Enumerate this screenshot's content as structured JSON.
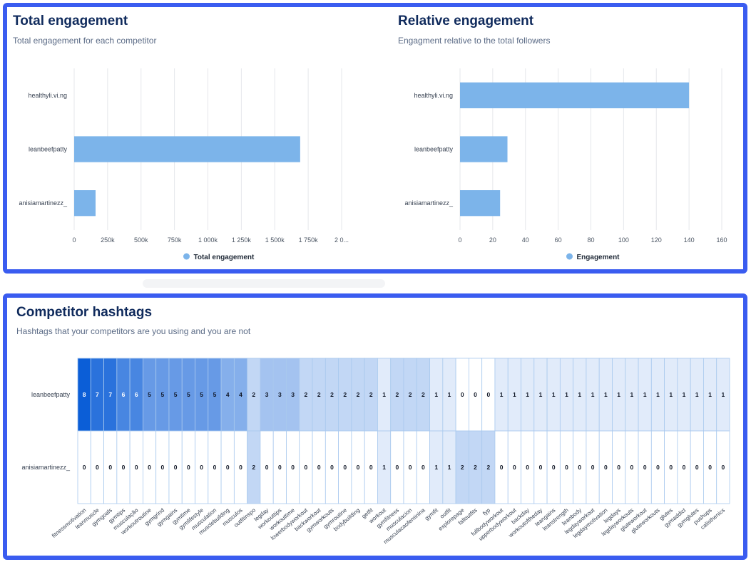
{
  "total_panel": {
    "title": "Total engagement",
    "subtitle": "Total engagement for each competitor"
  },
  "relative_panel": {
    "title": "Relative engagement",
    "subtitle": "Engagment relative to the total followers"
  },
  "hashtag_panel": {
    "title": "Competitor hashtags",
    "subtitle": "Hashtags that your competitors are you using and you are not"
  },
  "colors": {
    "bar": "#7cb4ea",
    "legend_dot": "#7cb4ea",
    "grid": "#e5e7eb",
    "heat_max": "#0b5ed7",
    "heat_min": "#ffffff"
  },
  "chart_data": [
    {
      "type": "bar",
      "orientation": "horizontal",
      "categories": [
        "healthyli.vi.ng",
        "leanbeefpatty",
        "anisiamartinezz_"
      ],
      "series": [
        {
          "name": "Total engagement",
          "values": [
            0,
            1690000,
            160000
          ]
        }
      ],
      "xlim": [
        0,
        2000000
      ],
      "x_ticks": [
        "0",
        "250k",
        "500k",
        "750k",
        "1 000k",
        "1 250k",
        "1 500k",
        "1 750k",
        "2 0..."
      ],
      "legend": "bottom-center",
      "grid": true
    },
    {
      "type": "bar",
      "orientation": "horizontal",
      "categories": [
        "healthyli.vi.ng",
        "leanbeefpatty",
        "anisiamartinezz_"
      ],
      "series": [
        {
          "name": "Engagement",
          "values": [
            140,
            29,
            24.5
          ]
        }
      ],
      "xlim": [
        0,
        160
      ],
      "x_ticks": [
        "0",
        "20",
        "40",
        "60",
        "80",
        "100",
        "120",
        "140",
        "160"
      ],
      "legend": "bottom-center",
      "grid": true
    },
    {
      "type": "heatmap",
      "rows": [
        "leanbeefpatty",
        "anisiamartinezz_"
      ],
      "columns": [
        "fitnessmotivation",
        "leanmuscle",
        "gymgoals",
        "gymtips",
        "musculação",
        "workoutroutine",
        "gymgrind",
        "gymgains",
        "gymtime",
        "gymlifestyle",
        "musculation",
        "musclebuilding",
        "musculos",
        "outfitinspo",
        "legday",
        "workouttips",
        "workouttime",
        "lowerbodyworkout",
        "backworkout",
        "gymworkouts",
        "gymroutine",
        "bodybuilding",
        "getfit",
        "workout",
        "gymfitness",
        "musculacion",
        "musculacaofeminina",
        "gymfit",
        "outfit",
        "explorepage",
        "falloutfits",
        "fyp",
        "fullbodyworkout",
        "upperbodyworkout",
        "backday",
        "workoutoftheday",
        "leangains",
        "leanstrength",
        "leanbody",
        "legdayworkout",
        "legdaymotivation",
        "legdays",
        "legdayworkouts",
        "gluteworkout",
        "gluteworkouts",
        "glutes",
        "gymaddict",
        "gymglutes",
        "pushups",
        "calisthenics"
      ],
      "values": [
        [
          8,
          7,
          7,
          6,
          6,
          5,
          5,
          5,
          5,
          5,
          5,
          4,
          4,
          2,
          3,
          3,
          3,
          2,
          2,
          2,
          2,
          2,
          2,
          1,
          2,
          2,
          2,
          1,
          1,
          0,
          0,
          0,
          1,
          1,
          1,
          1,
          1,
          1,
          1,
          1,
          1,
          1,
          1,
          1,
          1,
          1,
          1,
          1,
          1,
          1
        ],
        [
          0,
          0,
          0,
          0,
          0,
          0,
          0,
          0,
          0,
          0,
          0,
          0,
          0,
          2,
          0,
          0,
          0,
          0,
          0,
          0,
          0,
          0,
          0,
          1,
          0,
          0,
          0,
          1,
          1,
          2,
          2,
          2,
          0,
          0,
          0,
          0,
          0,
          0,
          0,
          0,
          0,
          0,
          0,
          0,
          0,
          0,
          0,
          0,
          0,
          0
        ]
      ],
      "zlim": [
        0,
        8
      ]
    }
  ]
}
